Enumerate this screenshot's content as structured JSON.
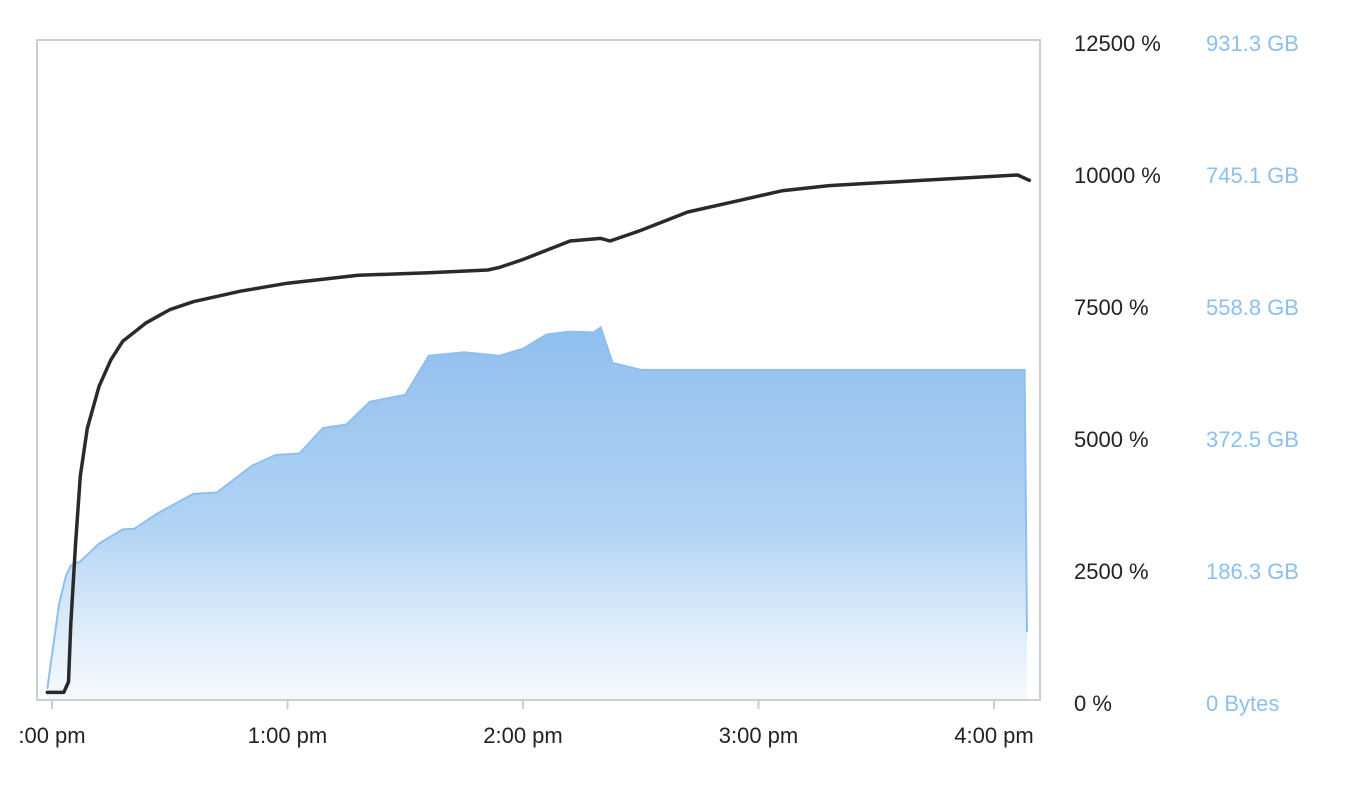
{
  "chart_data": {
    "type": "area",
    "title": "",
    "xlabel": "",
    "ylabel": "",
    "grid": false,
    "legend": "none",
    "x_axis": {
      "ticks": [
        ":00 pm",
        "1:00 pm",
        "2:00 pm",
        "3:00 pm",
        "4:00 pm"
      ],
      "tick_hours": [
        12,
        13,
        14,
        15,
        16
      ],
      "range_hours": [
        11.95,
        16.2
      ]
    },
    "y_axis_left": {
      "unit": "%",
      "ticks": [
        "12500 %",
        "10000 %",
        "7500 %",
        "5000 %",
        "2500 %",
        "0 %"
      ],
      "tick_values": [
        12500,
        10000,
        7500,
        5000,
        2500,
        0
      ],
      "range": [
        0,
        12500
      ]
    },
    "y_axis_right": {
      "unit": "GB",
      "ticks": [
        "931.3 GB",
        "745.1 GB",
        "558.8 GB",
        "372.5 GB",
        "186.3 GB",
        "0 Bytes"
      ],
      "tick_values": [
        931.3,
        745.1,
        558.8,
        372.5,
        186.3,
        0
      ],
      "range": [
        0,
        931.3
      ]
    },
    "series": [
      {
        "axis": "left",
        "kind": "line",
        "color": "#2a2a2a",
        "x": [
          11.98,
          12.05,
          12.07,
          12.08,
          12.1,
          12.12,
          12.15,
          12.2,
          12.25,
          12.3,
          12.4,
          12.5,
          12.6,
          12.8,
          13.0,
          13.3,
          13.6,
          13.85,
          13.9,
          14.0,
          14.2,
          14.33,
          14.37,
          14.5,
          14.7,
          14.9,
          15.1,
          15.3,
          15.5,
          15.7,
          15.9,
          16.1,
          16.15
        ],
        "y": [
          200,
          200,
          400,
          1500,
          3000,
          4300,
          5200,
          6000,
          6500,
          6850,
          7200,
          7450,
          7600,
          7800,
          7950,
          8100,
          8150,
          8200,
          8250,
          8400,
          8750,
          8800,
          8750,
          8950,
          9300,
          9500,
          9700,
          9800,
          9850,
          9900,
          9950,
          10000,
          9900
        ]
      },
      {
        "axis": "right",
        "kind": "area",
        "color": "#8fbfee",
        "x": [
          11.98,
          12.03,
          12.06,
          12.08,
          12.12,
          12.2,
          12.3,
          12.35,
          12.45,
          12.6,
          12.7,
          12.85,
          12.95,
          13.05,
          13.15,
          13.25,
          13.35,
          13.5,
          13.6,
          13.75,
          13.9,
          14.0,
          14.1,
          14.2,
          14.3,
          14.33,
          14.38,
          14.5,
          15.0,
          15.5,
          16.0,
          16.13,
          16.14
        ],
        "y": [
          20,
          140,
          180,
          194,
          200,
          225,
          245,
          246,
          268,
          295,
          297,
          335,
          350,
          352,
          388,
          393,
          425,
          435,
          490,
          495,
          490,
          500,
          520,
          524,
          523,
          530,
          480,
          470,
          470,
          470,
          470,
          470,
          100
        ]
      }
    ]
  }
}
